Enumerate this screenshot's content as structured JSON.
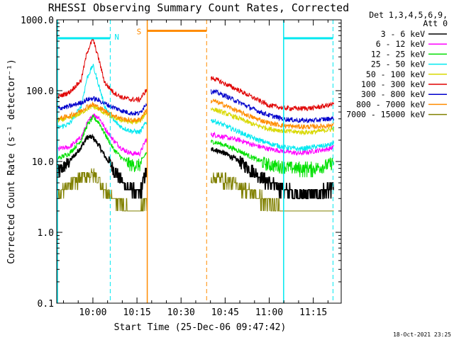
{
  "chart_data": {
    "type": "line",
    "title": "RHESSI Observing Summary Count Rates, Corrected",
    "xlabel": "Start Time (25-Dec-06 09:47:42)",
    "ylabel": "Corrected Count Rate (s⁻¹ detector⁻¹)",
    "y_scale": "log",
    "ylim": [
      0.1,
      1000
    ],
    "y_ticks": [
      "1000.0",
      "100.0",
      "10.0",
      "1.0",
      "0.1"
    ],
    "x_ticks": [
      "10:00",
      "10:15",
      "10:30",
      "10:45",
      "11:00",
      "11:15"
    ],
    "x_tick_minutes": [
      600,
      615,
      630,
      645,
      660,
      675
    ],
    "xlim_minutes": [
      587.7,
      684.5
    ],
    "legend_header": [
      "Det 1,3,4,5,6,9,",
      "Att 0"
    ],
    "legend_placement": "right",
    "colors": {
      "orbit_marker": "#00e8f0",
      "saa_marker": "#ff8c00"
    },
    "markers": {
      "night_label": "N",
      "saa_label": "S",
      "night_start_minutes": 605.9,
      "saa_start_minutes": 618.5,
      "saa_end_minutes": 638.7,
      "day_start_minutes": 664.9,
      "day_end_minutes": 681.7
    },
    "gap_minutes": [
      618.5,
      640.2
    ],
    "series": [
      {
        "name": "3 - 6 keV",
        "color": "#000000",
        "x": [
          588,
          592,
          596,
          598,
          600,
          602,
          604,
          607,
          610,
          613,
          616,
          618,
          641,
          645,
          650,
          655,
          660,
          665,
          670,
          675,
          680,
          682
        ],
        "y": [
          7,
          10,
          16,
          22,
          22,
          17,
          12,
          8,
          5,
          4,
          3.5,
          7,
          15,
          13,
          10,
          7,
          5,
          4,
          3.5,
          3.5,
          4,
          4.5
        ]
      },
      {
        "name": "6 - 12 keV",
        "color": "#ff00ff",
        "x": [
          588,
          592,
          596,
          598,
          600,
          602,
          604,
          607,
          610,
          613,
          616,
          618,
          641,
          645,
          650,
          655,
          660,
          665,
          670,
          675,
          680,
          682
        ],
        "y": [
          15,
          16,
          22,
          34,
          46,
          42,
          30,
          20,
          15,
          13,
          13,
          20,
          24,
          22,
          20,
          17,
          15,
          14,
          13,
          14,
          15,
          16
        ]
      },
      {
        "name": "12 - 25 keV",
        "color": "#00e000",
        "x": [
          588,
          592,
          596,
          598,
          600,
          602,
          604,
          607,
          610,
          613,
          616,
          618,
          641,
          645,
          650,
          655,
          660,
          665,
          670,
          675,
          680,
          682
        ],
        "y": [
          11,
          13,
          20,
          32,
          42,
          36,
          25,
          15,
          11,
          9,
          9,
          13,
          19,
          17,
          14,
          11,
          9,
          8.5,
          8,
          8,
          9,
          10
        ]
      },
      {
        "name": "25 - 50 keV",
        "color": "#00e8f0",
        "x": [
          588,
          592,
          596,
          598,
          600,
          602,
          604,
          607,
          610,
          613,
          616,
          618,
          641,
          645,
          650,
          655,
          660,
          665,
          670,
          675,
          680,
          682
        ],
        "y": [
          30,
          34,
          60,
          150,
          230,
          120,
          60,
          38,
          30,
          27,
          26,
          35,
          38,
          32,
          26,
          21,
          18,
          16,
          15,
          16,
          17,
          18
        ]
      },
      {
        "name": "50 - 100 keV",
        "color": "#d8d800",
        "x": [
          588,
          592,
          596,
          598,
          600,
          602,
          604,
          607,
          610,
          613,
          616,
          618,
          641,
          645,
          650,
          655,
          660,
          665,
          670,
          675,
          680,
          682
        ],
        "y": [
          38,
          41,
          48,
          56,
          60,
          55,
          48,
          42,
          38,
          36,
          37,
          48,
          55,
          48,
          40,
          33,
          29,
          27,
          26,
          26,
          28,
          29
        ]
      },
      {
        "name": "100 - 300 keV",
        "color": "#e00000",
        "x": [
          588,
          592,
          596,
          598,
          600,
          602,
          604,
          607,
          610,
          613,
          616,
          618,
          641,
          645,
          650,
          655,
          660,
          665,
          670,
          675,
          680,
          682
        ],
        "y": [
          82,
          95,
          140,
          350,
          540,
          280,
          130,
          95,
          80,
          75,
          75,
          100,
          150,
          125,
          100,
          78,
          62,
          57,
          56,
          57,
          62,
          65
        ]
      },
      {
        "name": "300 - 800 keV",
        "color": "#0000cc",
        "x": [
          588,
          592,
          596,
          598,
          600,
          602,
          604,
          607,
          610,
          613,
          616,
          618,
          641,
          645,
          650,
          655,
          660,
          665,
          670,
          675,
          680,
          682
        ],
        "y": [
          56,
          60,
          68,
          75,
          78,
          73,
          66,
          58,
          52,
          48,
          48,
          65,
          98,
          85,
          68,
          54,
          45,
          40,
          38,
          38,
          40,
          41
        ]
      },
      {
        "name": "800 - 7000 keV",
        "color": "#ff8c00",
        "x": [
          588,
          592,
          596,
          598,
          600,
          602,
          604,
          607,
          610,
          613,
          616,
          618,
          641,
          645,
          650,
          655,
          660,
          665,
          670,
          675,
          680,
          682
        ],
        "y": [
          40,
          44,
          52,
          60,
          64,
          58,
          52,
          45,
          40,
          38,
          39,
          52,
          72,
          62,
          50,
          41,
          35,
          32,
          31,
          31,
          32,
          33
        ]
      },
      {
        "name": "7000 - 15000 keV",
        "color": "#808000",
        "x": [
          588,
          592,
          596,
          598,
          600,
          602,
          604,
          607,
          610,
          613,
          616,
          618,
          641,
          645,
          650,
          655,
          660,
          665,
          670,
          675,
          680,
          682
        ],
        "y": [
          3.5,
          4.5,
          6,
          6.5,
          6.5,
          5.5,
          4,
          3,
          2.5,
          2,
          2,
          3,
          6,
          5.5,
          4.5,
          3.5,
          2.5,
          2,
          2,
          2,
          2,
          2
        ]
      }
    ]
  },
  "footer": {
    "timestamp": "18-Oct-2021 23:25"
  }
}
